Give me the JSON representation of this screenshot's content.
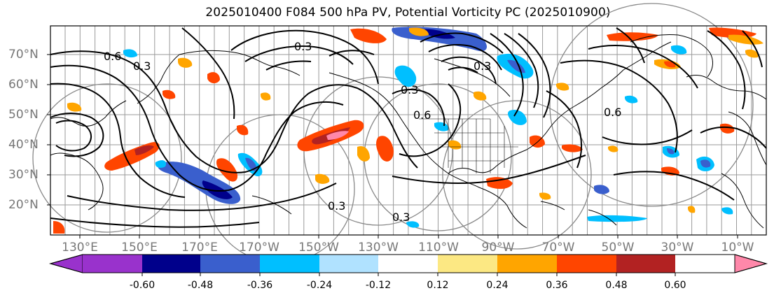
{
  "title": "2025010400 F084 500 hPa PV, Potential Vorticity PC (2025010900)",
  "lat_labels": [
    "70°N",
    "60°N",
    "50°N",
    "40°N",
    "30°N",
    "20°N"
  ],
  "lon_labels": [
    "130°E",
    "150°E",
    "170°E",
    "170°W",
    "150°W",
    "130°W",
    "110°W",
    "90°W",
    "70°W",
    "50°W",
    "30°W",
    "10°W"
  ],
  "contour_labels": [
    "0.6",
    "0.3",
    "0.3",
    "0.6",
    "0.3",
    "0.3",
    "0.3",
    "0.3",
    "0.6"
  ],
  "colorbar": {
    "labels": [
      "-0.60",
      "-0.48",
      "-0.36",
      "-0.24",
      "-0.12",
      "0.12",
      "0.24",
      "0.36",
      "0.48",
      "0.60"
    ],
    "colors": [
      "#9932cc",
      "#00008b",
      "#3a5fcd",
      "#00bfff",
      "#b0e2ff",
      "#ffffff",
      "#fce883",
      "#ffa500",
      "#ff4500",
      "#b22222",
      "#ff88aa"
    ]
  }
}
